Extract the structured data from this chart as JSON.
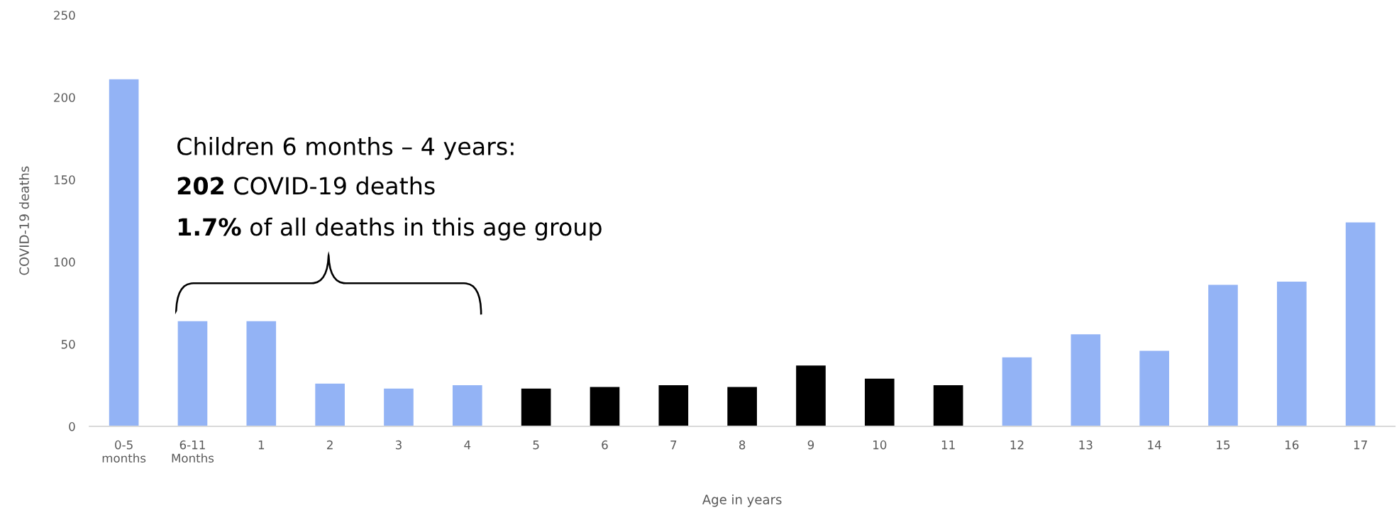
{
  "chart_data": {
    "type": "bar",
    "xlabel": "Age in years",
    "ylabel": "COVID-19 deaths",
    "categories": [
      "0-5\nmonths",
      "6-11\nMonths",
      "1",
      "2",
      "3",
      "4",
      "5",
      "6",
      "7",
      "8",
      "9",
      "10",
      "11",
      "12",
      "13",
      "14",
      "15",
      "16",
      "17"
    ],
    "values": [
      211,
      64,
      64,
      26,
      23,
      25,
      23,
      24,
      25,
      24,
      37,
      29,
      25,
      42,
      56,
      46,
      86,
      88,
      124
    ],
    "colors": [
      "#93b3f5",
      "#93b3f5",
      "#93b3f5",
      "#93b3f5",
      "#93b3f5",
      "#93b3f5",
      "#000000",
      "#000000",
      "#000000",
      "#000000",
      "#000000",
      "#000000",
      "#000000",
      "#93b3f5",
      "#93b3f5",
      "#93b3f5",
      "#93b3f5",
      "#93b3f5",
      "#93b3f5"
    ],
    "ylim": [
      0,
      250
    ],
    "yticks": [
      0,
      50,
      100,
      150,
      200,
      250
    ],
    "grid": false,
    "legend": false,
    "annotations": [
      "Children 6 months – 4 years:",
      "202 COVID-19 deaths",
      "1.7% of all deaths in this age group"
    ]
  }
}
